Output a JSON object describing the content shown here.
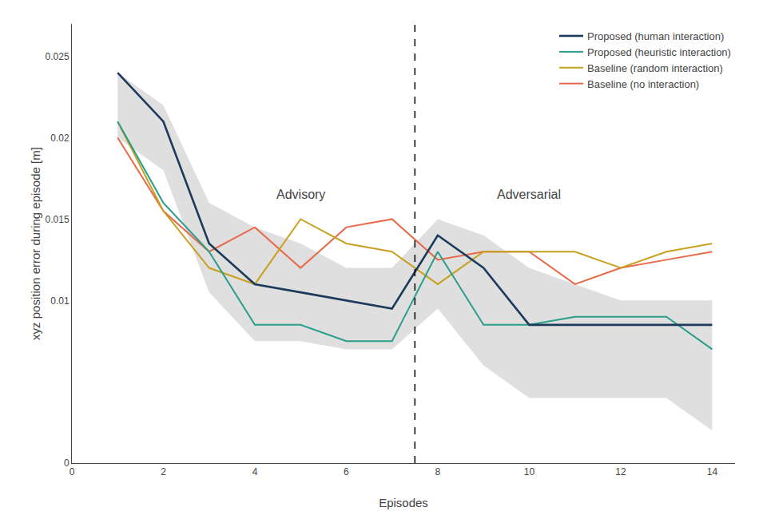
{
  "chart_data": {
    "type": "line",
    "x": [
      1,
      2,
      3,
      4,
      5,
      6,
      7,
      8,
      9,
      10,
      11,
      12,
      13,
      14
    ],
    "series": [
      {
        "name": "Baseline (no interaction)",
        "color": "#E8694A",
        "values": [
          0.02,
          0.0155,
          0.013,
          0.0145,
          0.012,
          0.0145,
          0.015,
          0.0125,
          0.013,
          0.013,
          0.011,
          0.012,
          0.0125,
          0.013
        ]
      },
      {
        "name": "Baseline (random interaction)",
        "color": "#C8A020",
        "values": [
          0.021,
          0.0155,
          0.012,
          0.011,
          0.015,
          0.0135,
          0.013,
          0.011,
          0.013,
          0.013,
          0.013,
          0.012,
          0.013,
          0.0135
        ]
      },
      {
        "name": "Proposed (heuristic interaction)",
        "color": "#2A9E8A",
        "values": [
          0.021,
          0.016,
          0.013,
          0.0085,
          0.0085,
          0.0075,
          0.0075,
          0.013,
          0.0085,
          0.0085,
          0.009,
          0.009,
          0.009,
          0.007
        ]
      },
      {
        "name": "Proposed (human interaction)",
        "color": "#1C3A5C",
        "values": [
          0.024,
          0.021,
          0.0135,
          0.011,
          0.0105,
          0.01,
          0.0095,
          0.014,
          0.012,
          0.0085,
          0.0085,
          0.0085,
          0.0085,
          0.0085
        ]
      }
    ],
    "band": {
      "color": "#B8B8B8",
      "lower": [
        0.02,
        0.018,
        0.0105,
        0.0075,
        0.0075,
        0.007,
        0.007,
        0.0095,
        0.006,
        0.004,
        0.004,
        0.004,
        0.004,
        0.002
      ],
      "upper": [
        0.024,
        0.022,
        0.016,
        0.0145,
        0.0135,
        0.012,
        0.012,
        0.015,
        0.014,
        0.012,
        0.011,
        0.01,
        0.01,
        0.01
      ]
    },
    "vline": 7.5,
    "annotations": [
      {
        "text": "Advisory",
        "x": 5.0,
        "y": 0.0165
      },
      {
        "text": "Adversarial",
        "x": 10.0,
        "y": 0.0165
      }
    ],
    "xlabel": "Episodes",
    "ylabel": "xyz position error during episode [m]",
    "xlim": [
      0,
      14.5
    ],
    "ylim": [
      0.0,
      0.027
    ],
    "xticks": [
      0,
      2,
      4,
      6,
      8,
      10,
      12,
      14
    ],
    "yticks": [
      0,
      {
        "value": 0.005,
        "label": ""
      },
      0.01,
      0.015,
      0.02,
      0.025
    ],
    "legend": "upper right",
    "grid": false
  }
}
